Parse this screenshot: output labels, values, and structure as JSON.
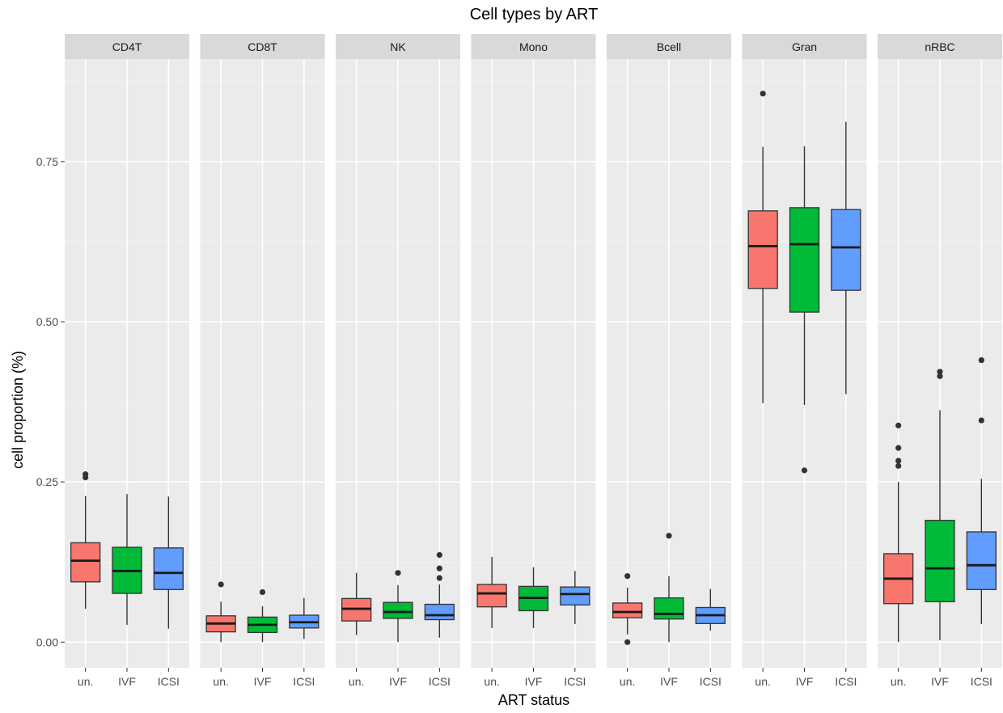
{
  "chart_data": {
    "type": "boxplot",
    "title": "Cell types by ART",
    "xlabel": "ART status",
    "ylabel": "cell proportion (%)",
    "ylim": [
      -0.04,
      0.91
    ],
    "yticks": [
      0.0,
      0.25,
      0.5,
      0.75
    ],
    "ytick_labels": [
      "0.00",
      "0.25",
      "0.50",
      "0.75"
    ],
    "grid": true,
    "categories": [
      "un.",
      "IVF",
      "ICSI"
    ],
    "colors": {
      "un.": "#F8766D",
      "IVF": "#00BA38",
      "ICSI": "#619CFF"
    },
    "panels": [
      {
        "name": "CD4T",
        "boxes": [
          {
            "group": "un.",
            "whisker_low": 0.052,
            "q1": 0.094,
            "median": 0.127,
            "q3": 0.155,
            "whisker_high": 0.228,
            "outliers": [
              0.257,
              0.262
            ]
          },
          {
            "group": "IVF",
            "whisker_low": 0.027,
            "q1": 0.076,
            "median": 0.111,
            "q3": 0.148,
            "whisker_high": 0.231,
            "outliers": []
          },
          {
            "group": "ICSI",
            "whisker_low": 0.021,
            "q1": 0.082,
            "median": 0.108,
            "q3": 0.147,
            "whisker_high": 0.227,
            "outliers": []
          }
        ]
      },
      {
        "name": "CD8T",
        "boxes": [
          {
            "group": "un.",
            "whisker_low": 0.0,
            "q1": 0.016,
            "median": 0.029,
            "q3": 0.041,
            "whisker_high": 0.063,
            "outliers": [
              0.09
            ]
          },
          {
            "group": "IVF",
            "whisker_low": 0.0,
            "q1": 0.015,
            "median": 0.027,
            "q3": 0.039,
            "whisker_high": 0.056,
            "outliers": [
              0.078
            ]
          },
          {
            "group": "ICSI",
            "whisker_low": 0.005,
            "q1": 0.022,
            "median": 0.031,
            "q3": 0.042,
            "whisker_high": 0.069,
            "outliers": []
          }
        ]
      },
      {
        "name": "NK",
        "boxes": [
          {
            "group": "un.",
            "whisker_low": 0.011,
            "q1": 0.033,
            "median": 0.052,
            "q3": 0.068,
            "whisker_high": 0.108,
            "outliers": []
          },
          {
            "group": "IVF",
            "whisker_low": 0.0,
            "q1": 0.037,
            "median": 0.047,
            "q3": 0.062,
            "whisker_high": 0.089,
            "outliers": [
              0.108
            ]
          },
          {
            "group": "ICSI",
            "whisker_low": 0.007,
            "q1": 0.035,
            "median": 0.042,
            "q3": 0.059,
            "whisker_high": 0.09,
            "outliers": [
              0.1,
              0.115,
              0.136
            ]
          }
        ]
      },
      {
        "name": "Mono",
        "boxes": [
          {
            "group": "un.",
            "whisker_low": 0.022,
            "q1": 0.055,
            "median": 0.076,
            "q3": 0.09,
            "whisker_high": 0.133,
            "outliers": []
          },
          {
            "group": "IVF",
            "whisker_low": 0.022,
            "q1": 0.049,
            "median": 0.069,
            "q3": 0.087,
            "whisker_high": 0.117,
            "outliers": []
          },
          {
            "group": "ICSI",
            "whisker_low": 0.028,
            "q1": 0.058,
            "median": 0.075,
            "q3": 0.086,
            "whisker_high": 0.111,
            "outliers": []
          }
        ]
      },
      {
        "name": "Bcell",
        "boxes": [
          {
            "group": "un.",
            "whisker_low": 0.012,
            "q1": 0.038,
            "median": 0.047,
            "q3": 0.061,
            "whisker_high": 0.085,
            "outliers": [
              0.0,
              0.103
            ]
          },
          {
            "group": "IVF",
            "whisker_low": 0.0,
            "q1": 0.036,
            "median": 0.044,
            "q3": 0.069,
            "whisker_high": 0.103,
            "outliers": [
              0.166
            ]
          },
          {
            "group": "ICSI",
            "whisker_low": 0.018,
            "q1": 0.029,
            "median": 0.042,
            "q3": 0.054,
            "whisker_high": 0.083,
            "outliers": []
          }
        ]
      },
      {
        "name": "Gran",
        "boxes": [
          {
            "group": "un.",
            "whisker_low": 0.373,
            "q1": 0.552,
            "median": 0.618,
            "q3": 0.673,
            "whisker_high": 0.773,
            "outliers": [
              0.856
            ]
          },
          {
            "group": "IVF",
            "whisker_low": 0.37,
            "q1": 0.515,
            "median": 0.621,
            "q3": 0.678,
            "whisker_high": 0.774,
            "outliers": [
              0.268
            ]
          },
          {
            "group": "ICSI",
            "whisker_low": 0.387,
            "q1": 0.549,
            "median": 0.616,
            "q3": 0.675,
            "whisker_high": 0.812,
            "outliers": []
          }
        ]
      },
      {
        "name": "nRBC",
        "boxes": [
          {
            "group": "un.",
            "whisker_low": 0.0,
            "q1": 0.06,
            "median": 0.099,
            "q3": 0.138,
            "whisker_high": 0.25,
            "outliers": [
              0.275,
              0.283,
              0.303,
              0.338
            ]
          },
          {
            "group": "IVF",
            "whisker_low": 0.003,
            "q1": 0.063,
            "median": 0.115,
            "q3": 0.19,
            "whisker_high": 0.362,
            "outliers": [
              0.415,
              0.422
            ]
          },
          {
            "group": "ICSI",
            "whisker_low": 0.028,
            "q1": 0.082,
            "median": 0.12,
            "q3": 0.172,
            "whisker_high": 0.255,
            "outliers": [
              0.346,
              0.44
            ]
          }
        ]
      }
    ]
  }
}
